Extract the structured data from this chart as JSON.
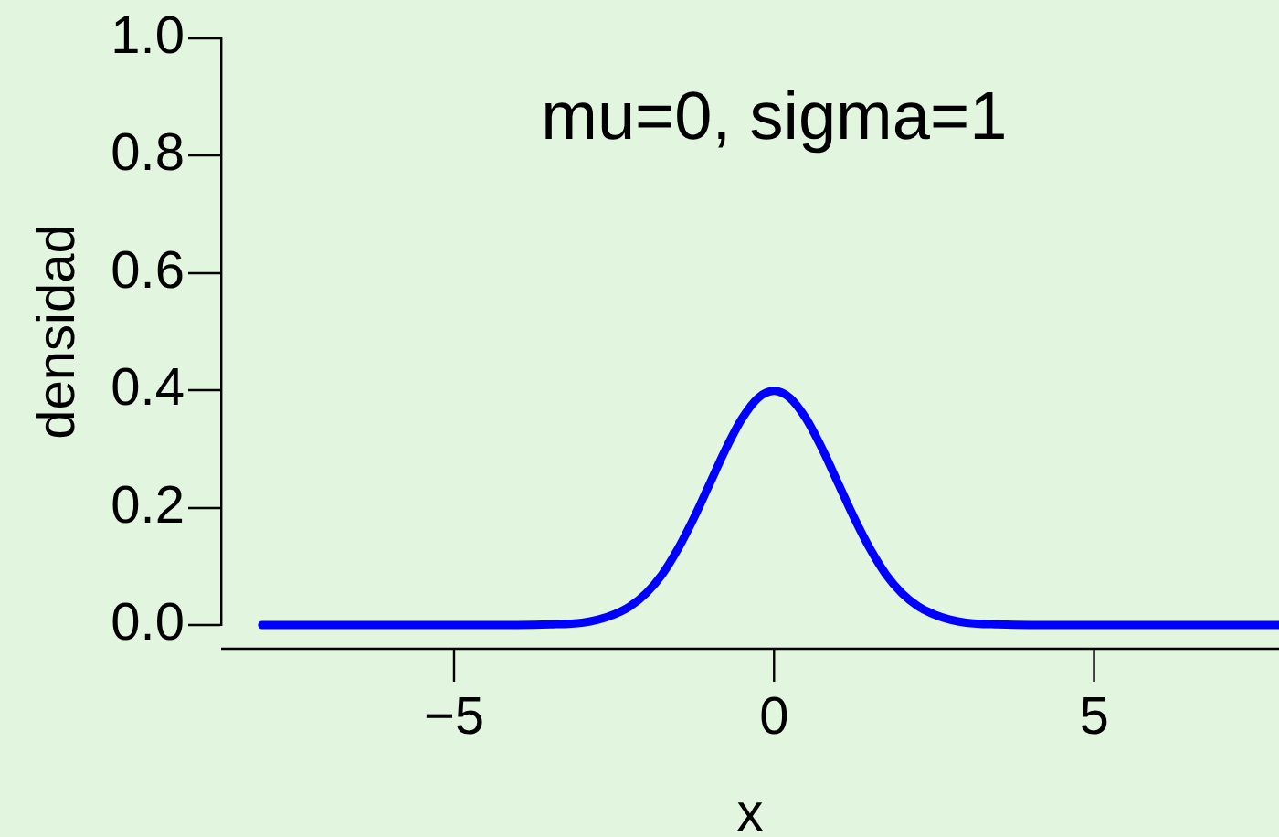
{
  "chart_data": {
    "type": "line",
    "title": "mu=0, sigma=1",
    "xlabel": "x",
    "ylabel": "densidad",
    "x": [
      -8,
      -6,
      -4.5,
      -4,
      -3.5,
      -3,
      -2.75,
      -2.5,
      -2.25,
      -2,
      -1.75,
      -1.5,
      -1.25,
      -1,
      -0.75,
      -0.5,
      -0.25,
      0,
      0.25,
      0.5,
      0.75,
      1,
      1.25,
      1.5,
      1.75,
      2,
      2.25,
      2.5,
      2.75,
      3,
      3.5,
      4,
      4.5,
      6,
      7.89
    ],
    "series": [
      {
        "color": "#0000ff",
        "values": [
          0,
          0,
          0,
          0,
          0.001,
          0.004,
          0.009,
          0.018,
          0.032,
          0.054,
          0.086,
          0.13,
          0.183,
          0.242,
          0.301,
          0.352,
          0.387,
          0.399,
          0.387,
          0.352,
          0.301,
          0.242,
          0.183,
          0.13,
          0.086,
          0.054,
          0.032,
          0.018,
          0.009,
          0.004,
          0.001,
          0,
          0,
          0,
          0
        ]
      }
    ],
    "xlim": [
      -8.64,
      7.89
    ],
    "ylim": [
      0,
      1
    ],
    "xticks": [
      {
        "value": -5,
        "label": "−5"
      },
      0,
      5
    ],
    "yticks": [
      {
        "value": 0,
        "label": "0.0"
      },
      0.2,
      0.4,
      0.6,
      0.8,
      {
        "value": 1,
        "label": "1.0"
      }
    ]
  }
}
